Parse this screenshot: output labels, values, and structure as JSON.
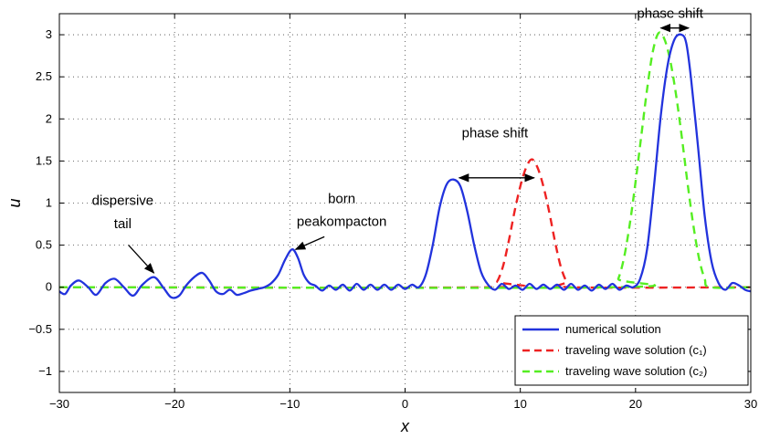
{
  "chart_data": {
    "type": "line",
    "xlabel": "x",
    "ylabel": "u",
    "xlim": [
      -30,
      30
    ],
    "ylim": [
      -1.25,
      3.25
    ],
    "xticks": [
      -30,
      -20,
      -10,
      0,
      10,
      20,
      30
    ],
    "yticks": [
      -1,
      -0.5,
      0,
      0.5,
      1,
      1.5,
      2,
      2.5,
      3
    ],
    "xtick_labels": [
      "−30",
      "−20",
      "−10",
      "0",
      "10",
      "20",
      "30"
    ],
    "ytick_labels": [
      "−1",
      "−0.5",
      "0",
      "0.5",
      "1",
      "1.5",
      "2",
      "2.5",
      "3"
    ],
    "grid": true,
    "legend_position": "bottom-right",
    "series": [
      {
        "name": "numerical solution",
        "style": "solid",
        "color": "#2233dd",
        "x": [
          -30,
          -29.5,
          -29,
          -28.3,
          -27.5,
          -26.8,
          -26,
          -25.2,
          -24.4,
          -23.6,
          -22.8,
          -21.8,
          -21,
          -20.3,
          -19.6,
          -19,
          -18.3,
          -17.6,
          -17,
          -16.4,
          -15.8,
          -15.2,
          -14.6,
          -14,
          -13.4,
          -12.8,
          -12.2,
          -11.6,
          -11,
          -10.4,
          -9.8,
          -9.3,
          -8.8,
          -8.3,
          -7.8,
          -7.2,
          -6.6,
          -6,
          -5.4,
          -4.8,
          -4.2,
          -3.6,
          -3,
          -2.4,
          -1.8,
          -1.2,
          -0.6,
          0,
          0.6,
          1.2,
          1.8,
          2.4,
          3,
          3.6,
          4.2,
          4.8,
          5.4,
          6,
          6.6,
          7.2,
          7.8,
          8.4,
          9,
          9.6,
          10.2,
          10.8,
          11.4,
          12,
          12.6,
          13.2,
          13.8,
          14.4,
          15,
          15.6,
          16.2,
          16.8,
          17.4,
          18,
          18.6,
          19.2,
          19.8,
          20.4,
          21,
          21.6,
          22.2,
          22.8,
          23.4,
          24,
          24.4,
          24.8,
          25.4,
          26,
          26.6,
          27.2,
          27.8,
          28.4,
          29,
          29.5,
          30
        ],
        "y": [
          -0.05,
          -0.08,
          0.02,
          0.08,
          0.0,
          -0.09,
          0.05,
          0.1,
          0.0,
          -0.1,
          0.03,
          0.12,
          0.0,
          -0.12,
          -0.1,
          0.02,
          0.12,
          0.17,
          0.08,
          -0.05,
          -0.08,
          -0.03,
          -0.09,
          -0.07,
          -0.04,
          -0.02,
          0.0,
          0.05,
          0.15,
          0.33,
          0.45,
          0.35,
          0.15,
          0.05,
          0.02,
          -0.04,
          0.02,
          -0.03,
          0.03,
          -0.04,
          0.04,
          -0.03,
          0.03,
          -0.03,
          0.03,
          -0.03,
          0.03,
          -0.02,
          0.03,
          0.0,
          0.15,
          0.5,
          0.95,
          1.22,
          1.28,
          1.2,
          0.9,
          0.5,
          0.18,
          0.03,
          -0.03,
          0.04,
          -0.02,
          0.02,
          -0.03,
          0.04,
          -0.02,
          0.03,
          -0.02,
          0.03,
          -0.03,
          0.04,
          -0.03,
          0.02,
          -0.04,
          0.03,
          -0.02,
          0.04,
          -0.03,
          0.02,
          0.0,
          0.1,
          0.45,
          1.2,
          2.05,
          2.65,
          2.95,
          3.0,
          2.9,
          2.5,
          1.7,
          0.85,
          0.3,
          0.05,
          -0.03,
          0.05,
          0.02,
          -0.03,
          -0.05
        ]
      },
      {
        "name": "traveling wave solution (c₁)",
        "style": "dashed",
        "color": "#ee2222",
        "x": [
          -30,
          7.5,
          8,
          8.5,
          9,
          9.5,
          10,
          10.5,
          11,
          11.5,
          12,
          12.5,
          13,
          13.5,
          14,
          14.5,
          30
        ],
        "y": [
          0,
          0,
          0.07,
          0.25,
          0.55,
          0.9,
          1.2,
          1.42,
          1.52,
          1.42,
          1.2,
          0.9,
          0.55,
          0.25,
          0.07,
          0,
          0
        ]
      },
      {
        "name": "traveling wave solution (c₂)",
        "style": "dashed",
        "color": "#55ee22",
        "x": [
          -30,
          18,
          18.5,
          19,
          19.5,
          20,
          20.5,
          21,
          21.5,
          22,
          22.5,
          23,
          23.5,
          24,
          24.5,
          25,
          25.5,
          26,
          26.5,
          30
        ],
        "y": [
          0,
          0,
          0.1,
          0.35,
          0.75,
          1.25,
          1.8,
          2.35,
          2.8,
          3.02,
          2.95,
          2.7,
          2.3,
          1.8,
          1.25,
          0.75,
          0.35,
          0.1,
          0,
          0
        ]
      }
    ],
    "annotations": [
      {
        "lines": [
          "dispersive",
          "tail"
        ],
        "text_x": -24.5,
        "text_y": [
          0.98,
          0.7
        ],
        "arrow_from": [
          -24,
          0.5
        ],
        "arrow_to": [
          -21.8,
          0.17
        ]
      },
      {
        "lines": [
          "born",
          "peakompacton"
        ],
        "text_x": -5.5,
        "text_y": [
          1.0,
          0.73
        ],
        "arrow_from": [
          -7,
          0.6
        ],
        "arrow_to": [
          -9.5,
          0.45
        ]
      },
      {
        "lines": [
          "phase shift"
        ],
        "text_x": 7.8,
        "text_y": [
          1.78
        ],
        "double_arrow": [
          4.7,
          11.2,
          1.3
        ]
      },
      {
        "lines": [
          "phase shift"
        ],
        "text_x": 23,
        "text_y": [
          3.2
        ],
        "double_arrow": [
          22.2,
          24.6,
          3.08
        ]
      }
    ]
  }
}
